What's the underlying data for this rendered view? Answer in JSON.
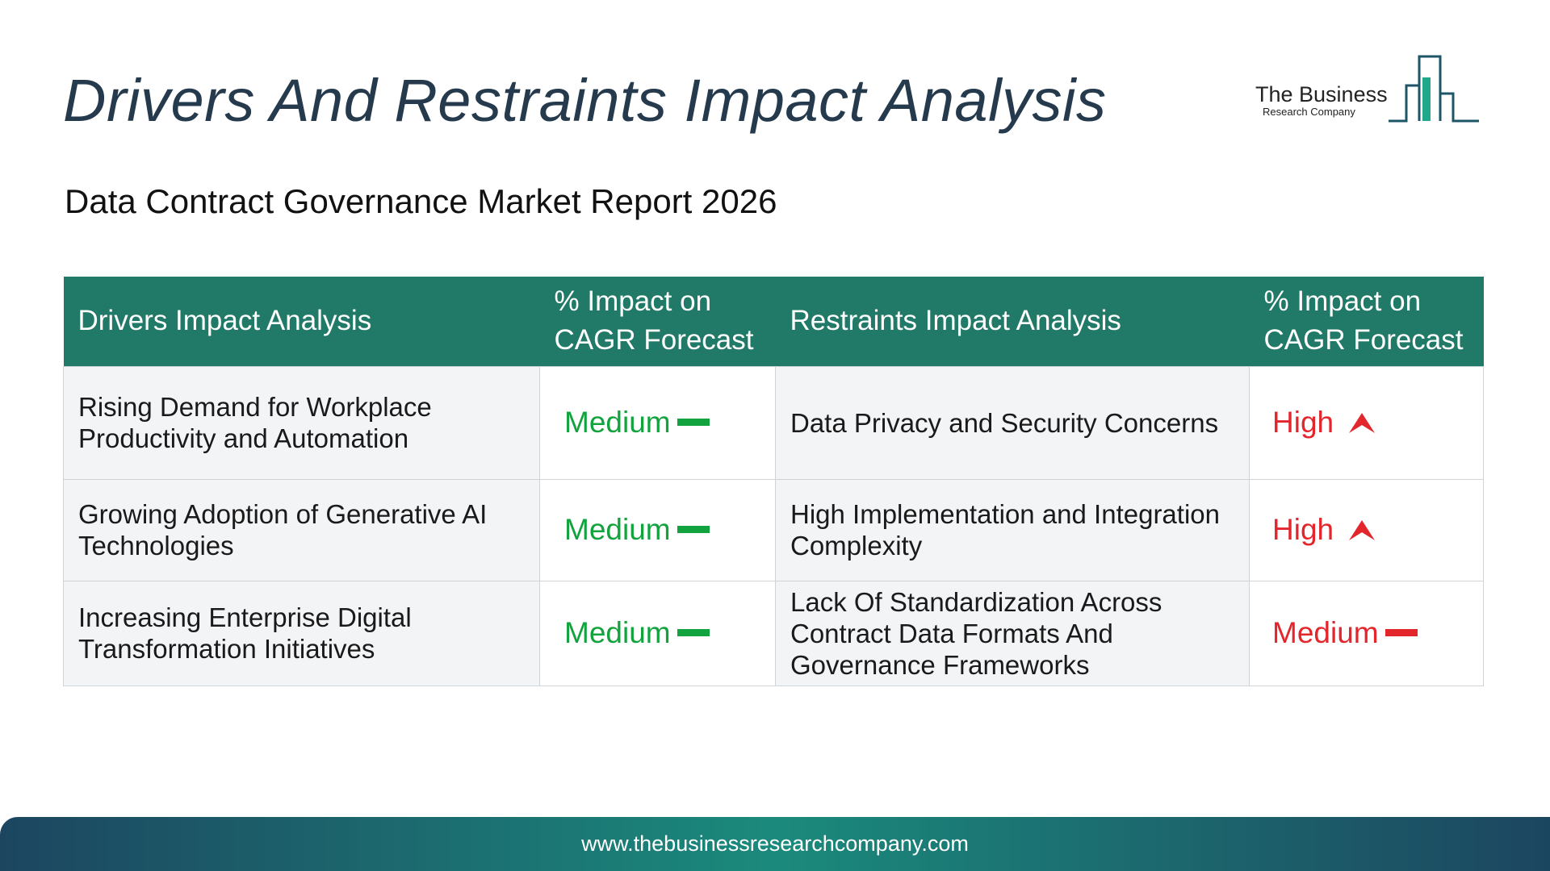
{
  "header": {
    "title": "Drivers And Restraints Impact Analysis",
    "subtitle": "Data Contract Governance Market Report 2026"
  },
  "logo": {
    "line1": "The Business",
    "line2": "Research Company"
  },
  "table": {
    "headers": {
      "drivers": "Drivers Impact Analysis",
      "drivers_impact": "% Impact on CAGR Forecast",
      "restraints": "Restraints Impact Analysis",
      "restraints_impact": "% Impact on CAGR Forecast"
    },
    "rows": [
      {
        "driver": "Rising Demand for Workplace Productivity and Automation",
        "driver_impact": "Medium",
        "restraint": "Data Privacy and Security Concerns",
        "restraint_impact": "High"
      },
      {
        "driver": "Growing Adoption of Generative AI Technologies",
        "driver_impact": "Medium",
        "restraint": "High Implementation and Integration Complexity",
        "restraint_impact": "High"
      },
      {
        "driver": "Increasing Enterprise Digital Transformation Initiatives",
        "driver_impact": "Medium",
        "restraint": "Lack Of Standardization Across Contract Data Formats And Governance Frameworks",
        "restraint_impact": "Medium"
      }
    ]
  },
  "colors": {
    "header_bg": "#217a68",
    "title": "#263a4d",
    "driver_impact": "#12a33e",
    "restraint_impact": "#e3262b"
  },
  "icons": {
    "medium": "dash-icon",
    "high": "arrow-up-icon"
  },
  "footer": {
    "url": "www.thebusinessresearchcompany.com"
  }
}
